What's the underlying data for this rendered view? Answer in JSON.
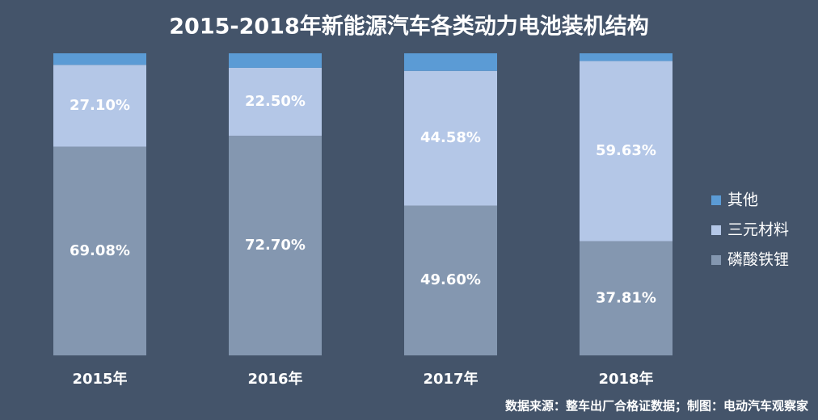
{
  "chart_data": {
    "type": "stacked_bar",
    "title": "2015-2018年新能源汽车各类动力电池装机结构",
    "categories": [
      "2015年",
      "2016年",
      "2017年",
      "2018年"
    ],
    "series": [
      {
        "name": "磷酸铁锂",
        "color": "#8497b0",
        "values": [
          69.08,
          72.7,
          49.6,
          37.81
        ],
        "value_labels": [
          "69.08%",
          "72.70%",
          "49.60%",
          "37.81%"
        ]
      },
      {
        "name": "三元材料",
        "color": "#b4c7e7",
        "values": [
          27.1,
          22.5,
          44.58,
          59.63
        ],
        "value_labels": [
          "27.10%",
          "22.50%",
          "44.58%",
          "59.63%"
        ]
      },
      {
        "name": "其他",
        "color": "#5b9bd5",
        "values": [
          3.82,
          4.8,
          5.82,
          2.56
        ]
      }
    ],
    "ylim": [
      0,
      100
    ],
    "source": "数据来源：整车出厂合格证数据；制图：电动汽车观察家"
  }
}
